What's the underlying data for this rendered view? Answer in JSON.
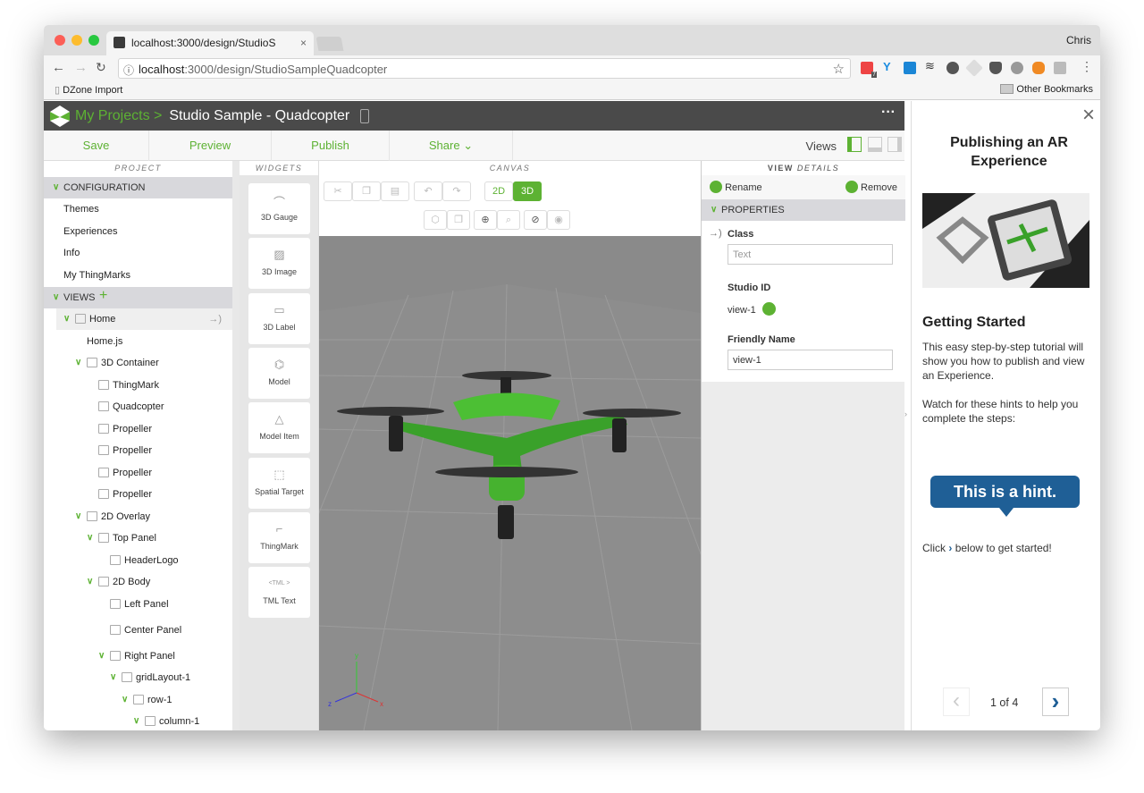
{
  "browser": {
    "tab_title": "localhost:3000/design/StudioS",
    "user": "Chris",
    "url_host": "localhost",
    "url_rest": ":3000/design/StudioSampleQuadcopter",
    "bookmark": "DZone Import",
    "other_bookmarks": "Other Bookmarks",
    "ext_badge": "7"
  },
  "app": {
    "breadcrumb_root": "My Projects >",
    "project_title": "Studio Sample - Quadcopter",
    "more": "···",
    "actions": {
      "save": "Save",
      "preview": "Preview",
      "publish": "Publish",
      "share": "Share",
      "views": "Views"
    },
    "accent": "#5db233"
  },
  "project": {
    "header": "PROJECT",
    "configuration": "CONFIGURATION",
    "config_items": [
      "Themes",
      "Experiences",
      "Info",
      "My ThingMarks"
    ],
    "views": "VIEWS",
    "tree": [
      {
        "label": "Home",
        "level": 0,
        "chev": true,
        "icon": "view"
      },
      {
        "label": "Home.js",
        "level": 1,
        "chev": false,
        "icon": ""
      },
      {
        "label": "3D Container",
        "level": 1,
        "chev": true,
        "icon": "cube"
      },
      {
        "label": "ThingMark",
        "level": 2,
        "chev": false,
        "icon": "thingmark"
      },
      {
        "label": "Quadcopter",
        "level": 2,
        "chev": false,
        "icon": "model"
      },
      {
        "label": "Propeller",
        "level": 2,
        "chev": false,
        "icon": "model-item"
      },
      {
        "label": "Propeller",
        "level": 2,
        "chev": false,
        "icon": "model-item"
      },
      {
        "label": "Propeller",
        "level": 2,
        "chev": false,
        "icon": "model-item"
      },
      {
        "label": "Propeller",
        "level": 2,
        "chev": false,
        "icon": "model-item"
      },
      {
        "label": "2D Overlay",
        "level": 1,
        "chev": true,
        "icon": "layers"
      },
      {
        "label": "Top Panel",
        "level": 2,
        "chev": true,
        "icon": "panel"
      },
      {
        "label": "HeaderLogo",
        "level": 3,
        "chev": false,
        "icon": "image"
      },
      {
        "label": "2D Body",
        "level": 2,
        "chev": true,
        "icon": "layers"
      },
      {
        "label": "Left Panel",
        "level": 3,
        "chev": false,
        "icon": "panel"
      },
      {
        "label": "Center Panel",
        "level": 3,
        "chev": false,
        "icon": "panel"
      },
      {
        "label": "Right Panel",
        "level": 3,
        "chev": true,
        "icon": "panel"
      },
      {
        "label": "gridLayout-1",
        "level": 4,
        "chev": true,
        "icon": "grid"
      },
      {
        "label": "row-1",
        "level": 5,
        "chev": true,
        "icon": "row"
      },
      {
        "label": "column-1",
        "level": 6,
        "chev": true,
        "icon": "column"
      }
    ]
  },
  "widgets": {
    "header": "WIDGETS",
    "items": [
      "3D Gauge",
      "3D Image",
      "3D Label",
      "Model",
      "Model Item",
      "Spatial Target",
      "ThingMark",
      "TML Text"
    ],
    "tml_glyph": "<TML >"
  },
  "canvas": {
    "header": "CANVAS",
    "mode_2d": "2D",
    "mode_3d": "3D",
    "active_mode": "3D",
    "axis_x": "x",
    "axis_y": "y",
    "axis_z": "z"
  },
  "details": {
    "header_a": "VIEW",
    "header_b": "DETAILS",
    "rename": "Rename",
    "remove": "Remove",
    "properties": "PROPERTIES",
    "class_label": "Class",
    "class_placeholder": "Text",
    "studio_id_label": "Studio ID",
    "studio_id": "view-1",
    "friendly_label": "Friendly Name",
    "friendly_value": "view-1"
  },
  "tutorial": {
    "title": "Publishing an AR Experience",
    "subtitle": "Getting Started",
    "p1": "This easy step-by-step tutorial will show you how to publish and view an Experience.",
    "p2": "Watch for these hints to help you complete the steps:",
    "hint": "This is a hint.",
    "click_a": "Click",
    "click_b": "below to get started!",
    "page": "1 of 4",
    "hint_color": "#1f5f96"
  }
}
